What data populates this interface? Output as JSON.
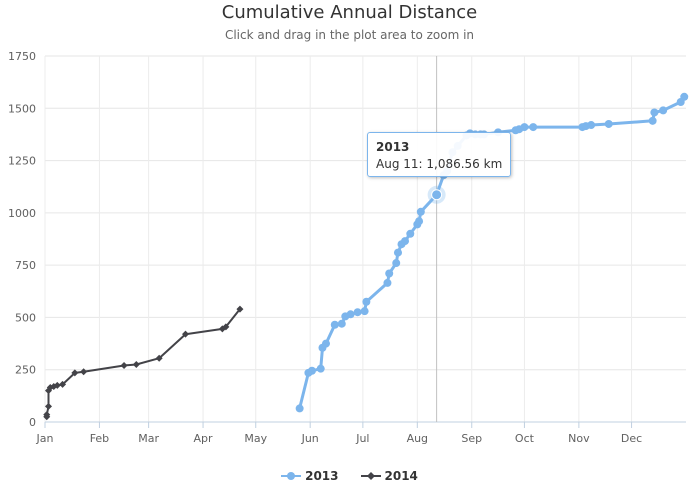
{
  "chart_data": {
    "type": "line",
    "title": "Cumulative Annual Distance",
    "subtitle": "Click and drag in the plot area to zoom in",
    "xlabel": "",
    "ylabel": "",
    "ylim": [
      0,
      1750
    ],
    "y_ticks": [
      "0",
      "250",
      "500",
      "750",
      "1000",
      "1250",
      "1500",
      "1750"
    ],
    "x_ticks": [
      "Jan",
      "Feb",
      "Mar",
      "Apr",
      "May",
      "Jun",
      "Jul",
      "Aug",
      "Sep",
      "Oct",
      "Nov",
      "Dec"
    ],
    "x_unit": "day of year",
    "series": [
      {
        "name": "2013",
        "color": "#7cb5ec",
        "marker": "circle",
        "points": [
          [
            145,
            65
          ],
          [
            150,
            235
          ],
          [
            152,
            245
          ],
          [
            157,
            255
          ],
          [
            158,
            355
          ],
          [
            160,
            375
          ],
          [
            165,
            465
          ],
          [
            169,
            470
          ],
          [
            171,
            505
          ],
          [
            174,
            515
          ],
          [
            178,
            525
          ],
          [
            182,
            530
          ],
          [
            183,
            575
          ],
          [
            195,
            665
          ],
          [
            196,
            710
          ],
          [
            200,
            760
          ],
          [
            201,
            810
          ],
          [
            203,
            850
          ],
          [
            205,
            865
          ],
          [
            208,
            900
          ],
          [
            212,
            945
          ],
          [
            213,
            960
          ],
          [
            214,
            1005
          ],
          [
            223,
            1086.56
          ],
          [
            227,
            1180
          ],
          [
            229,
            1200
          ],
          [
            232,
            1290
          ],
          [
            235,
            1320
          ],
          [
            240,
            1370
          ],
          [
            242,
            1380
          ],
          [
            245,
            1375
          ],
          [
            248,
            1375
          ],
          [
            250,
            1375
          ],
          [
            258,
            1385
          ],
          [
            268,
            1395
          ],
          [
            270,
            1400
          ],
          [
            273,
            1410
          ],
          [
            278,
            1410
          ],
          [
            306,
            1410
          ],
          [
            308,
            1415
          ],
          [
            311,
            1420
          ],
          [
            321,
            1425
          ],
          [
            346,
            1440
          ],
          [
            347,
            1480
          ],
          [
            352,
            1490
          ],
          [
            362,
            1530
          ],
          [
            364,
            1555
          ]
        ]
      },
      {
        "name": "2014",
        "color": "#434348",
        "marker": "diamond",
        "points": [
          [
            1,
            25
          ],
          [
            1,
            35
          ],
          [
            2,
            75
          ],
          [
            2,
            150
          ],
          [
            3,
            165
          ],
          [
            5,
            170
          ],
          [
            7,
            175
          ],
          [
            10,
            180
          ],
          [
            17,
            235
          ],
          [
            22,
            240
          ],
          [
            45,
            270
          ],
          [
            52,
            275
          ],
          [
            65,
            305
          ],
          [
            80,
            420
          ],
          [
            101,
            445
          ],
          [
            103,
            455
          ],
          [
            111,
            540
          ]
        ]
      }
    ],
    "tooltip": {
      "series": "2013",
      "label": "Aug 11: 1,086.56 km",
      "x": 223,
      "y": 1086.56
    },
    "legend": [
      "2013",
      "2014"
    ]
  }
}
